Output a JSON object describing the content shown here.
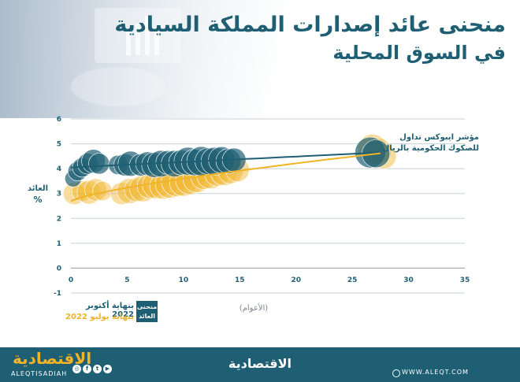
{
  "title": {
    "line1": "منحنى عائد إصدارات المملكة السيادية",
    "line2": "في السوق المحلية"
  },
  "chart_data": {
    "type": "scatter",
    "xlabel": "(الأعوام)",
    "ylabel": "العائد %",
    "xlim": [
      0,
      35
    ],
    "ylim": [
      -1,
      6
    ],
    "xticks": [
      0,
      5,
      10,
      15,
      20,
      25,
      30,
      35
    ],
    "yticks": [
      -1,
      0,
      1,
      2,
      3,
      4,
      5,
      6
    ],
    "grid": true,
    "annotation": [
      "مؤشر ايبوكس تداول",
      "للصكوك الحكومية بالريال"
    ],
    "series": [
      {
        "name": "بنهاية أكتوبر 2022",
        "color": "#1f5f74",
        "x": [
          0.2,
          0.6,
          1.0,
          1.5,
          2.0,
          2.5,
          4.2,
          4.8,
          5.3,
          6.2,
          6.8,
          7.4,
          8.0,
          8.6,
          9.2,
          9.8,
          10.4,
          11.0,
          11.6,
          12.2,
          12.8,
          13.4,
          14.0,
          14.5,
          26.6,
          27.1
        ],
        "y": [
          3.6,
          3.9,
          4.05,
          4.2,
          4.3,
          4.2,
          4.15,
          4.15,
          4.2,
          4.15,
          4.2,
          4.15,
          4.2,
          4.25,
          4.2,
          4.25,
          4.3,
          4.25,
          4.3,
          4.3,
          4.3,
          4.35,
          4.3,
          4.35,
          4.65,
          4.6
        ],
        "size": [
          0.5,
          0.7,
          0.7,
          0.8,
          1.0,
          0.8,
          0.7,
          0.9,
          1.1,
          0.9,
          1.0,
          1.1,
          1.2,
          1.0,
          1.2,
          1.1,
          1.3,
          1.2,
          1.4,
          1.2,
          1.3,
          1.2,
          1.1,
          1.0,
          1.5,
          1.3
        ],
        "fit": {
          "x": [
            0,
            27.5
          ],
          "y": [
            4.05,
            4.65
          ]
        }
      },
      {
        "name": "بنهاية يوليو 2022",
        "color": "#f0b429",
        "x": [
          0.3,
          1.0,
          1.6,
          2.2,
          2.8,
          4.5,
          5.2,
          5.8,
          6.4,
          7.0,
          7.6,
          8.2,
          8.8,
          9.4,
          10.0,
          10.6,
          11.2,
          11.8,
          12.4,
          13.0,
          13.6,
          14.2,
          14.8,
          26.8,
          27.3,
          27.8
        ],
        "y": [
          3.0,
          3.1,
          3.05,
          3.15,
          3.1,
          3.0,
          3.1,
          3.15,
          3.2,
          3.3,
          3.35,
          3.3,
          3.4,
          3.5,
          3.45,
          3.55,
          3.6,
          3.7,
          3.75,
          3.8,
          3.85,
          3.9,
          3.95,
          4.8,
          4.7,
          4.5
        ],
        "size": [
          0.9,
          0.8,
          1.0,
          0.9,
          0.7,
          0.9,
          1.1,
          1.0,
          1.2,
          1.1,
          1.3,
          1.2,
          1.4,
          1.5,
          1.3,
          1.4,
          1.3,
          1.2,
          1.3,
          1.1,
          1.2,
          1.1,
          1.0,
          1.4,
          1.2,
          1.1
        ],
        "fit": {
          "x": [
            0,
            27.5
          ],
          "y": [
            2.7,
            4.62
          ]
        }
      }
    ]
  },
  "legend": {
    "box_label": "منحنى العائد",
    "october": "بنهاية أكتوبر 2022",
    "july": "بنهاية يوليو 2022"
  },
  "footer": {
    "brand_left": "الاقتصادية",
    "handle": "ALEQTISADIAH",
    "brand_center": "الاقتصادية",
    "website": "WWW.ALEQT.COM",
    "social_icons": [
      "instagram-icon",
      "facebook-icon",
      "twitter-icon",
      "youtube-icon"
    ]
  },
  "colors": {
    "primary": "#1f5f74",
    "accent": "#f0b429",
    "footer_bg": "#1f5f74"
  }
}
